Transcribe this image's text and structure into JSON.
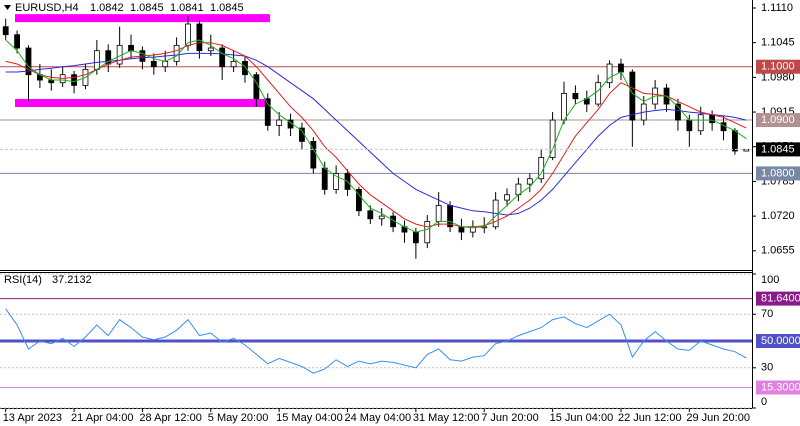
{
  "chart_data": [
    {
      "type": "candlestick",
      "title": "EURUSD,H4",
      "categories": [
        "13 Apr 2023",
        null,
        null,
        null,
        null,
        null,
        "21 Apr 04:00",
        null,
        null,
        null,
        null,
        null,
        "28 Apr 12:00",
        null,
        null,
        null,
        null,
        null,
        "5 May 20:00",
        null,
        null,
        null,
        null,
        null,
        "15 May 04:00",
        null,
        null,
        null,
        null,
        null,
        "24 May 04:00",
        null,
        null,
        null,
        null,
        null,
        "31 May 12:00",
        null,
        null,
        null,
        null,
        null,
        "7 Jun 20:00",
        null,
        null,
        null,
        null,
        null,
        "15 Jun 04:00",
        null,
        null,
        null,
        null,
        null,
        "22 Jun 12:00",
        null,
        null,
        null,
        null,
        null,
        "29 Jun 20:00",
        null,
        null,
        null,
        null,
        null
      ],
      "candles": [
        [
          1.1075,
          1.109,
          1.105,
          1.106
        ],
        [
          1.106,
          1.1068,
          1.1025,
          1.1035
        ],
        [
          1.1035,
          1.104,
          1.0935,
          1.0985
        ],
        [
          1.0985,
          1.1005,
          1.096,
          1.0975
        ],
        [
          1.0975,
          1.0995,
          1.0955,
          1.097
        ],
        [
          1.097,
          1.1,
          1.0962,
          1.0985
        ],
        [
          1.0985,
          1.0992,
          1.095,
          1.0965
        ],
        [
          1.0965,
          1.1005,
          1.0958,
          1.0995
        ],
        [
          1.0995,
          1.105,
          1.0985,
          1.103
        ],
        [
          1.103,
          1.1042,
          1.099,
          1.1005
        ],
        [
          1.1005,
          1.1075,
          1.0998,
          1.104
        ],
        [
          1.104,
          1.106,
          1.1015,
          1.103
        ],
        [
          1.103,
          1.1038,
          1.0995,
          1.101
        ],
        [
          1.101,
          1.1025,
          1.0985,
          1.1
        ],
        [
          1.1,
          1.103,
          1.099,
          1.101
        ],
        [
          1.101,
          1.1055,
          1.1002,
          1.104
        ],
        [
          1.104,
          1.1095,
          1.103,
          1.108
        ],
        [
          1.108,
          1.1088,
          1.1015,
          1.103
        ],
        [
          1.103,
          1.106,
          1.102,
          1.1035
        ],
        [
          1.1035,
          1.1042,
          1.0975,
          1.1
        ],
        [
          1.1,
          1.103,
          1.099,
          1.101
        ],
        [
          1.101,
          1.102,
          1.097,
          1.0985
        ],
        [
          1.0985,
          1.099,
          1.0925,
          1.094
        ],
        [
          1.094,
          1.095,
          1.088,
          1.089
        ],
        [
          1.089,
          1.0915,
          1.087,
          1.09
        ],
        [
          1.09,
          1.0912,
          1.087,
          1.0885
        ],
        [
          1.0885,
          1.0895,
          1.0845,
          1.086
        ],
        [
          1.086,
          1.0868,
          1.08,
          1.081
        ],
        [
          1.081,
          1.0822,
          1.076,
          1.077
        ],
        [
          1.077,
          1.0815,
          1.0762,
          1.08
        ],
        [
          1.08,
          1.0808,
          1.0758,
          1.077
        ],
        [
          1.077,
          1.0775,
          1.072,
          1.073
        ],
        [
          1.073,
          1.074,
          1.0705,
          1.0715
        ],
        [
          1.0715,
          1.0735,
          1.0702,
          1.072
        ],
        [
          1.072,
          1.0728,
          1.069,
          1.07
        ],
        [
          1.07,
          1.0712,
          1.067,
          1.069
        ],
        [
          1.069,
          1.0698,
          1.064,
          1.067
        ],
        [
          1.067,
          1.0722,
          1.066,
          1.071
        ],
        [
          1.071,
          1.0765,
          1.07,
          1.074
        ],
        [
          1.074,
          1.0748,
          1.069,
          1.07
        ],
        [
          1.07,
          1.0715,
          1.0675,
          1.069
        ],
        [
          1.069,
          1.0712,
          1.068,
          1.07
        ],
        [
          1.07,
          1.0718,
          1.0688,
          1.07
        ],
        [
          1.07,
          1.0765,
          1.0695,
          1.075
        ],
        [
          1.075,
          1.0772,
          1.0738,
          1.076
        ],
        [
          1.076,
          1.0792,
          1.0748,
          1.078
        ],
        [
          1.078,
          1.08,
          1.0765,
          1.079
        ],
        [
          1.079,
          1.0845,
          1.0782,
          1.083
        ],
        [
          1.083,
          1.0915,
          1.0825,
          1.09
        ],
        [
          1.09,
          1.0972,
          1.0892,
          1.095
        ],
        [
          1.095,
          1.0965,
          1.093,
          1.094
        ],
        [
          1.094,
          1.0955,
          1.0915,
          1.093
        ],
        [
          1.093,
          1.0985,
          1.0925,
          1.097
        ],
        [
          1.097,
          1.1012,
          1.096,
          1.1005
        ],
        [
          1.1005,
          1.1015,
          1.0975,
          1.099
        ],
        [
          1.099,
          1.0995,
          1.085,
          1.09
        ],
        [
          1.09,
          1.0945,
          1.089,
          1.093
        ],
        [
          1.093,
          1.0975,
          1.092,
          1.096
        ],
        [
          1.096,
          1.0968,
          1.0915,
          1.093
        ],
        [
          1.093,
          1.094,
          1.088,
          1.09
        ],
        [
          1.09,
          1.091,
          1.085,
          1.088
        ],
        [
          1.088,
          1.0925,
          1.0872,
          1.091
        ],
        [
          1.091,
          1.0918,
          1.088,
          1.0895
        ],
        [
          1.0895,
          1.0908,
          1.0862,
          1.088
        ],
        [
          1.088,
          1.0885,
          1.0835,
          1.0842
        ],
        [
          1.0842,
          1.0845,
          1.0841,
          1.0845
        ]
      ],
      "series": [
        {
          "color": "#2b2bdc",
          "values": [
            1.099,
            1.099,
            1.0992,
            1.0995,
            1.0997,
            1.1,
            1.1002,
            1.1005,
            1.1008,
            1.101,
            1.1012,
            1.1015,
            1.1017,
            1.1018,
            1.102,
            1.1022,
            1.1025,
            1.1025,
            1.1025,
            1.1024,
            1.1022,
            1.102,
            1.1012,
            1.1,
            1.0985,
            1.097,
            1.0955,
            1.094,
            1.092,
            1.09,
            1.088,
            1.086,
            1.084,
            1.082,
            1.08,
            1.0785,
            1.077,
            1.076,
            1.075,
            1.074,
            1.0735,
            1.073,
            1.0728,
            1.0725,
            1.0722,
            1.0725,
            1.0735,
            1.075,
            1.077,
            1.0795,
            1.082,
            1.0845,
            1.087,
            1.089,
            1.0905,
            1.091,
            1.0915,
            1.0918,
            1.092,
            1.0918,
            1.0915,
            1.0913,
            1.091,
            1.0908,
            1.0905,
            1.09
          ]
        },
        {
          "color": "#e02020",
          "values": [
            1.101,
            1.1005,
            1.0995,
            1.0985,
            1.098,
            1.0978,
            1.098,
            1.0985,
            1.0995,
            1.1005,
            1.1012,
            1.1018,
            1.102,
            1.1022,
            1.1025,
            1.103,
            1.104,
            1.1045,
            1.1045,
            1.104,
            1.103,
            1.102,
            1.1,
            1.0975,
            1.095,
            1.0925,
            1.0905,
            1.088,
            1.085,
            1.083,
            1.0805,
            1.078,
            1.076,
            1.0745,
            1.073,
            1.0715,
            1.0705,
            1.07,
            1.0705,
            1.0705,
            1.07,
            1.07,
            1.0702,
            1.071,
            1.072,
            1.0735,
            1.075,
            1.077,
            1.08,
            1.0835,
            1.087,
            1.0895,
            1.092,
            1.095,
            1.097,
            1.096,
            1.095,
            1.0948,
            1.0945,
            1.0935,
            1.0925,
            1.0915,
            1.091,
            1.0905,
            1.0895,
            1.0885
          ]
        },
        {
          "color": "#1fb01f",
          "values": [
            1.105,
            1.103,
            1.1,
            1.0985,
            1.0975,
            1.0975,
            1.0972,
            1.098,
            1.0995,
            1.101,
            1.102,
            1.103,
            1.1025,
            1.1015,
            1.101,
            1.102,
            1.1045,
            1.105,
            1.104,
            1.1025,
            1.1015,
            1.1,
            1.097,
            1.093,
            1.091,
            1.0895,
            1.088,
            1.0845,
            1.081,
            1.0795,
            1.0785,
            1.076,
            1.0735,
            1.0725,
            1.0712,
            1.07,
            1.069,
            1.0695,
            1.071,
            1.071,
            1.07,
            1.0698,
            1.07,
            1.072,
            1.074,
            1.076,
            1.0775,
            1.08,
            1.0845,
            1.09,
            1.093,
            1.094,
            1.0955,
            1.098,
            1.099,
            1.095,
            1.0935,
            1.0945,
            1.0945,
            1.0925,
            1.09,
            1.09,
            1.09,
            1.089,
            1.088,
            1.0865
          ]
        }
      ],
      "ylim": [
        1.0619,
        1.1125
      ],
      "yticks": [
        {
          "value": 1.111,
          "label": "1.1110"
        },
        1.1045,
        {
          "value": 1.098,
          "label": "1.0980"
        },
        1.0915,
        {
          "value": 1.085,
          "label": "1.0850"
        },
        1.0785,
        {
          "value": 1.072,
          "label": "1.0720"
        },
        1.0655
      ],
      "grid": false,
      "levels": [
        {
          "value": 1.1,
          "label": "1.1000",
          "color": "#c04848"
        },
        {
          "value": 1.09,
          "label": "1.0900",
          "color": "#b09090"
        },
        {
          "value": 1.08,
          "label": "1.0800",
          "color": "#7888a4"
        }
      ],
      "zones": [
        {
          "value": 1.1091,
          "color": "#ff00ff"
        },
        {
          "value": 1.0932,
          "color": "#ff00ff"
        }
      ]
    },
    {
      "type": "line",
      "title": "RSI(14)",
      "series": [
        {
          "color": "#3c8ee8",
          "values": [
            74,
            62,
            44,
            50,
            48,
            52,
            46,
            53,
            62,
            54,
            66,
            60,
            53,
            51,
            53,
            58,
            66,
            54,
            56,
            49,
            52,
            47,
            40,
            33,
            37,
            34,
            31,
            26,
            29,
            36,
            31,
            35,
            33,
            35,
            34,
            32,
            30,
            40,
            44,
            36,
            35,
            38,
            39,
            48,
            50,
            54,
            57,
            60,
            66,
            68,
            63,
            60,
            65,
            70,
            62,
            38,
            50,
            57,
            50,
            44,
            43,
            50,
            47,
            44,
            42,
            37.2132
          ]
        }
      ],
      "ylim": [
        0,
        100
      ],
      "yticks": [
        100,
        70,
        30,
        0
      ],
      "grid": true,
      "levels": [
        {
          "value": 81.64,
          "label": "81.6400",
          "color": "#8a1a8a"
        },
        {
          "value": 50,
          "label": "50.0000",
          "color": "#5050c8"
        },
        {
          "value": 15.3,
          "label": "15.3000",
          "color": "#e080e0"
        }
      ]
    }
  ]
}
